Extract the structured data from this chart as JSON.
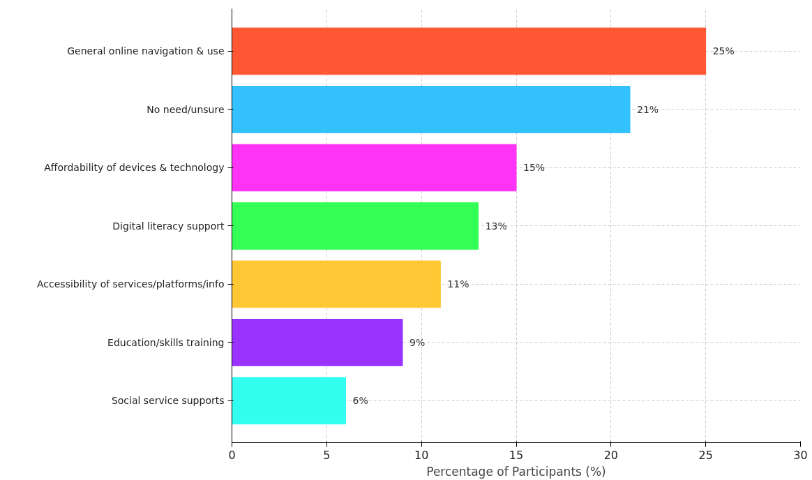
{
  "chart_data": {
    "type": "bar",
    "orientation": "horizontal",
    "xlabel": "Percentage of Participants (%)",
    "categories": [
      "General online navigation & use",
      "No need/unsure",
      "Affordability of devices & technology",
      "Digital literacy support",
      "Accessibility of services/platforms/info",
      "Education/skills training",
      "Social service supports"
    ],
    "values": [
      25,
      21,
      15,
      13,
      11,
      9,
      6
    ],
    "colors": [
      "#ff5733",
      "#33c1ff",
      "#ff33f6",
      "#33ff57",
      "#ffc733",
      "#9b33ff",
      "#33fff0"
    ],
    "value_labels": [
      "25%",
      "21%",
      "15%",
      "13%",
      "11%",
      "9%",
      "6%"
    ],
    "xlim": [
      0,
      30
    ],
    "xticks": [
      0,
      5,
      10,
      15,
      20,
      25,
      30
    ],
    "grid": true,
    "line_style": "dashed"
  }
}
